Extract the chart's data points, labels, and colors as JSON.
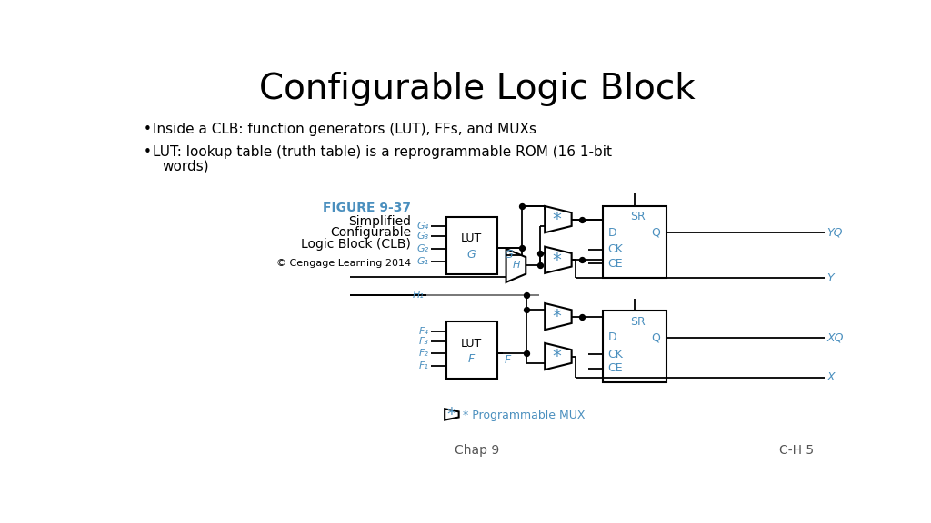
{
  "title": "Configurable Logic Block",
  "bullet1": "Inside a CLB: function generators (LUT), FFs, and MUXs",
  "bullet2": "LUT: lookup table (truth table) is a reprogrammable ROM (16 1-bit\nwords)",
  "fig_title": "FIGURE 9-37",
  "fig_caption_1": "Simplified",
  "fig_caption_2": "Configurable",
  "fig_caption_3": "Logic Block (CLB)",
  "fig_copyright": "© Cengage Learning 2014",
  "footer_left": "Chap 9",
  "footer_right": "C-H 5",
  "diagram_color": "#4a8fbe",
  "text_color": "#000000",
  "bg_color": "#ffffff",
  "g_inputs": [
    "G₄",
    "G₃",
    "G₂",
    "G₁"
  ],
  "f_inputs": [
    "F₄",
    "F₃",
    "F₂",
    "F₁"
  ]
}
